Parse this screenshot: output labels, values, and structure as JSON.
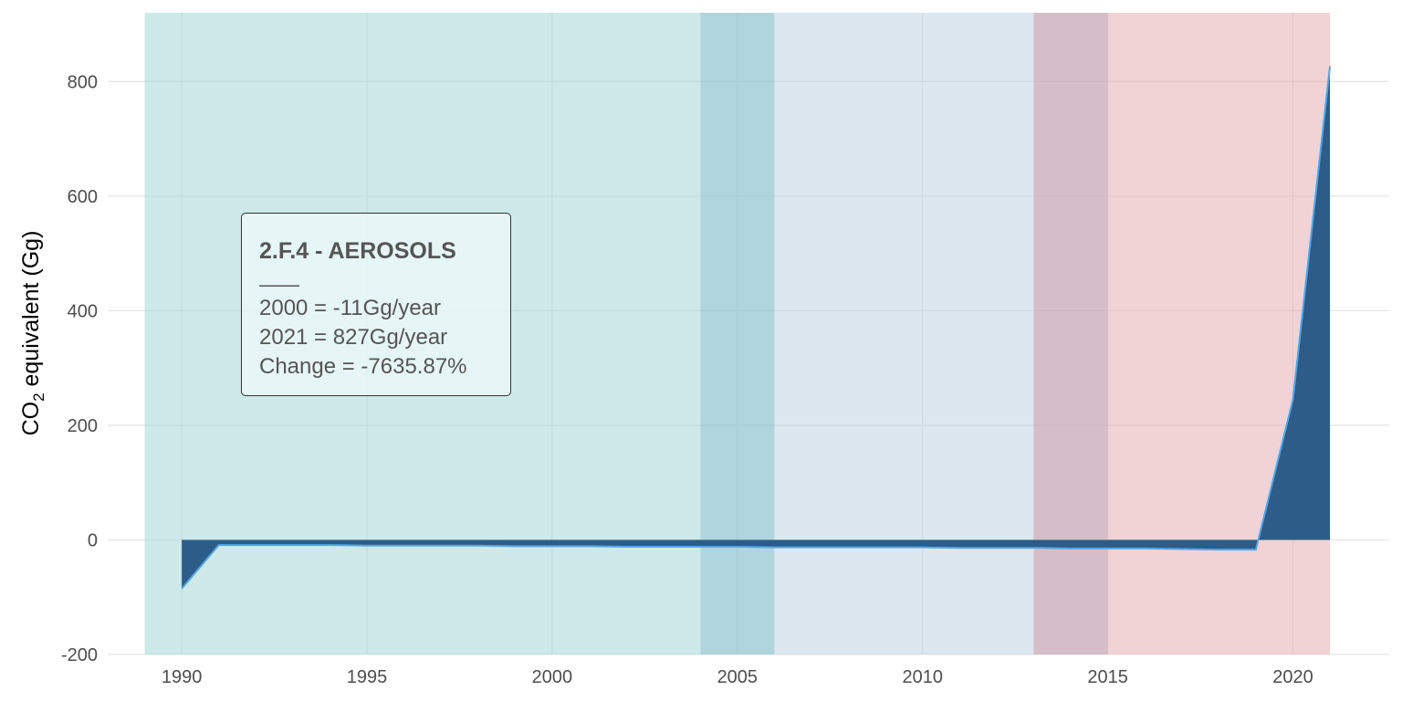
{
  "chart_data": {
    "type": "area",
    "ylabel_main": "CO",
    "ylabel_sub": "2",
    "ylabel_rest": " equivalent (Gg)",
    "xlim": [
      1988,
      2022.6
    ],
    "ylim": [
      -200,
      920
    ],
    "x_ticks": [
      1990,
      1995,
      2000,
      2005,
      2010,
      2015,
      2020
    ],
    "x_tick_labels": [
      "1990",
      "1995",
      "2000",
      "2005",
      "2010",
      "2015",
      "2020"
    ],
    "y_ticks": [
      -200,
      0,
      200,
      400,
      600,
      800
    ],
    "y_tick_labels": [
      "-200",
      "0",
      "200",
      "400",
      "600",
      "800"
    ],
    "grid": true,
    "series": [
      {
        "x": [
          1990,
          1991,
          1992,
          1993,
          1994,
          1995,
          1996,
          1997,
          1998,
          1999,
          2000,
          2001,
          2002,
          2003,
          2004,
          2005,
          2006,
          2007,
          2008,
          2009,
          2010,
          2011,
          2012,
          2013,
          2014,
          2015,
          2016,
          2017,
          2018,
          2019,
          2020,
          2021
        ],
        "y": [
          -85,
          -9,
          -9,
          -9,
          -9,
          -10,
          -10,
          -10,
          -10,
          -11,
          -11,
          -11,
          -12,
          -12,
          -12,
          -12,
          -13,
          -13,
          -13,
          -13,
          -13,
          -14,
          -14,
          -14,
          -15,
          -15,
          -15,
          -16,
          -17,
          -17,
          245,
          827
        ],
        "fill_color": "#2c5c87",
        "line_color": "#56a4e6"
      }
    ],
    "bands": [
      {
        "x": [
          1989,
          2004
        ],
        "color": "#9fd5d5",
        "opacity": 0.52
      },
      {
        "x": [
          2004,
          2006
        ],
        "color": "#8fc3cf",
        "opacity": 0.7
      },
      {
        "x": [
          2006,
          2013
        ],
        "color": "#b6cde0",
        "opacity": 0.48
      },
      {
        "x": [
          2013,
          2015
        ],
        "color": "#c5a5b3",
        "opacity": 0.72
      },
      {
        "x": [
          2015,
          2021
        ],
        "color": "#e4abaf",
        "opacity": 0.52
      }
    ],
    "annotation": {
      "title": "2.F.4 - AEROSOLS",
      "rule": "——",
      "lines": [
        "2000 = -11Gg/year",
        "2021 = 827Gg/year",
        "Change = -7635.87%"
      ]
    }
  }
}
